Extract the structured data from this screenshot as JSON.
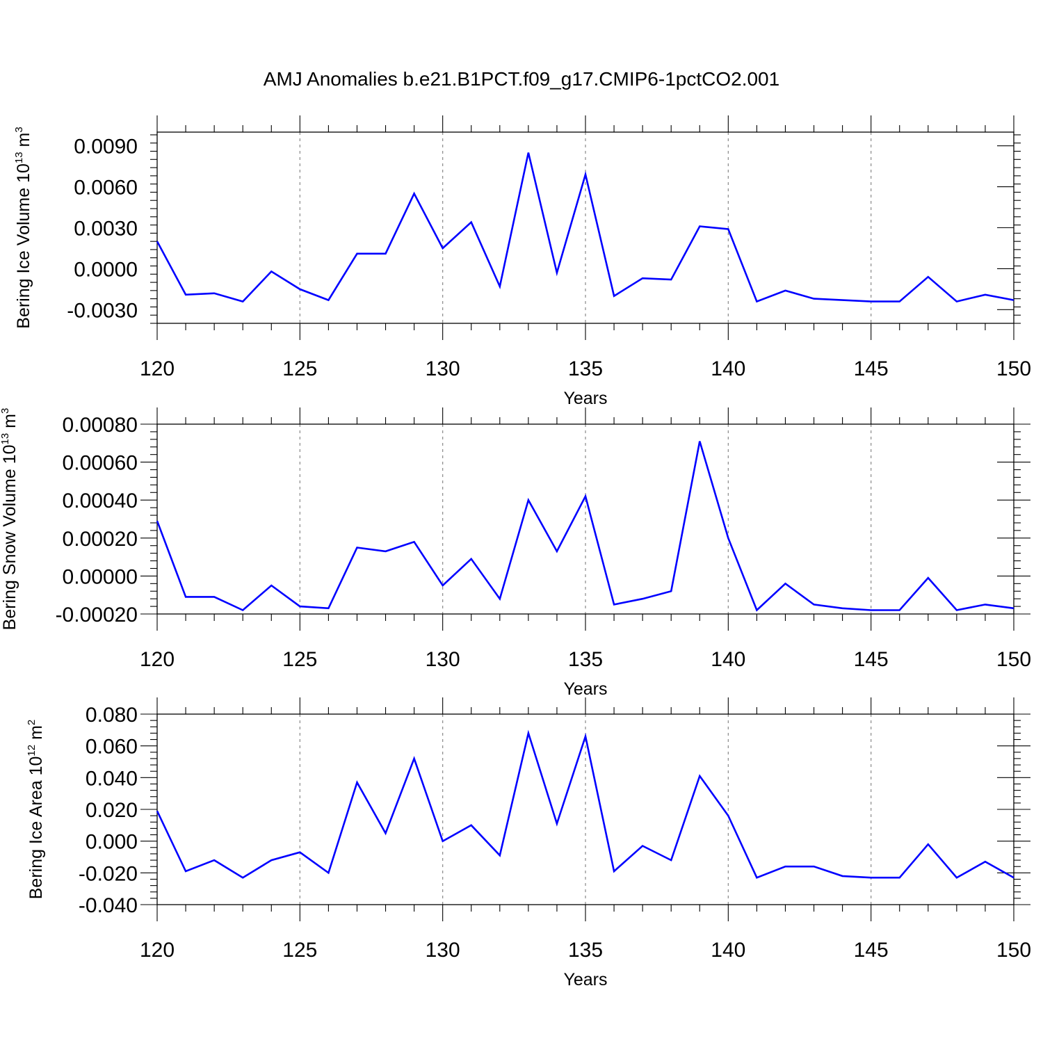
{
  "title": "AMJ Anomalies b.e21.B1PCT.f09_g17.CMIP6-1pctCO2.001",
  "colors": {
    "line": "#0000ff",
    "axis": "#000000",
    "grid": "#888888"
  },
  "chart_data": [
    {
      "type": "line",
      "ylabel": {
        "main": "Bering Ice Volume 10",
        "exp": "13",
        "unit": " m",
        "unit_exp": "3"
      },
      "xlabel": "Years",
      "xlim": [
        120,
        150
      ],
      "ylim": [
        -0.004,
        0.01
      ],
      "yticks": [
        -0.003,
        0.0,
        0.003,
        0.006,
        0.009
      ],
      "ytick_labels": [
        "-0.0030",
        "0.0000",
        "0.0030",
        "0.0060",
        "0.0090"
      ],
      "xticks": [
        120,
        125,
        130,
        135,
        140,
        145,
        150
      ],
      "xtick_labels": [
        "120",
        "125",
        "130",
        "135",
        "140",
        "145",
        "150"
      ],
      "grid": "vertical dashed at major x ticks",
      "series": [
        {
          "x": [
            120,
            121,
            122,
            123,
            124,
            125,
            126,
            127,
            128,
            129,
            130,
            131,
            132,
            133,
            134,
            135,
            136,
            137,
            138,
            139,
            140,
            141,
            142,
            143,
            144,
            145,
            146,
            147,
            148,
            149,
            150
          ],
          "values": [
            0.002,
            -0.0019,
            -0.0018,
            -0.0024,
            -0.0002,
            -0.0015,
            -0.0023,
            0.0011,
            0.0011,
            0.0055,
            0.0015,
            0.0034,
            -0.0013,
            0.0085,
            -0.0003,
            0.0069,
            -0.002,
            -0.0007,
            -0.0008,
            0.0031,
            0.0029,
            -0.0024,
            -0.0016,
            -0.0022,
            -0.0023,
            -0.0024,
            -0.0024,
            -0.0006,
            -0.0024,
            -0.0019,
            -0.0023
          ]
        }
      ]
    },
    {
      "type": "line",
      "ylabel": {
        "main": "Bering Snow Volume 10",
        "exp": "13",
        "unit": " m",
        "unit_exp": "3"
      },
      "xlabel": "Years",
      "xlim": [
        120,
        150
      ],
      "ylim": [
        -0.0002,
        0.0008
      ],
      "yticks": [
        -0.0002,
        0.0,
        0.0002,
        0.0004,
        0.0006,
        0.0008
      ],
      "ytick_labels": [
        "-0.00020",
        "0.00000",
        "0.00020",
        "0.00040",
        "0.00060",
        "0.00080"
      ],
      "xticks": [
        120,
        125,
        130,
        135,
        140,
        145,
        150
      ],
      "xtick_labels": [
        "120",
        "125",
        "130",
        "135",
        "140",
        "145",
        "150"
      ],
      "grid": "vertical dashed at major x ticks",
      "series": [
        {
          "x": [
            120,
            121,
            122,
            123,
            124,
            125,
            126,
            127,
            128,
            129,
            130,
            131,
            132,
            133,
            134,
            135,
            136,
            137,
            138,
            139,
            140,
            141,
            142,
            143,
            144,
            145,
            146,
            147,
            148,
            149,
            150
          ],
          "values": [
            0.00029,
            -0.00011,
            -0.00011,
            -0.00018,
            -5e-05,
            -0.00016,
            -0.00017,
            0.00015,
            0.00013,
            0.00018,
            -5e-05,
            9e-05,
            -0.00012,
            0.0004,
            0.00013,
            0.00042,
            -0.00015,
            -0.00012,
            -8e-05,
            0.00071,
            0.0002,
            -0.00018,
            -4e-05,
            -0.00015,
            -0.00017,
            -0.00018,
            -0.00018,
            -1e-05,
            -0.00018,
            -0.00015,
            -0.00017
          ]
        }
      ]
    },
    {
      "type": "line",
      "ylabel": {
        "main": "Bering Ice Area 10",
        "exp": "12",
        "unit": " m",
        "unit_exp": "2"
      },
      "xlabel": "Years",
      "xlim": [
        120,
        150
      ],
      "ylim": [
        -0.04,
        0.08
      ],
      "yticks": [
        -0.04,
        -0.02,
        0.0,
        0.02,
        0.04,
        0.06,
        0.08
      ],
      "ytick_labels": [
        "-0.040",
        "-0.020",
        "0.000",
        "0.020",
        "0.040",
        "0.060",
        "0.080"
      ],
      "xticks": [
        120,
        125,
        130,
        135,
        140,
        145,
        150
      ],
      "xtick_labels": [
        "120",
        "125",
        "130",
        "135",
        "140",
        "145",
        "150"
      ],
      "grid": "vertical dashed at major x ticks",
      "series": [
        {
          "x": [
            120,
            121,
            122,
            123,
            124,
            125,
            126,
            127,
            128,
            129,
            130,
            131,
            132,
            133,
            134,
            135,
            136,
            137,
            138,
            139,
            140,
            141,
            142,
            143,
            144,
            145,
            146,
            147,
            148,
            149,
            150
          ],
          "values": [
            0.019,
            -0.019,
            -0.012,
            -0.023,
            -0.012,
            -0.007,
            -0.02,
            0.037,
            0.005,
            0.052,
            0.0,
            0.01,
            -0.009,
            0.068,
            0.011,
            0.066,
            -0.019,
            -0.003,
            -0.012,
            0.041,
            0.016,
            -0.023,
            -0.016,
            -0.016,
            -0.022,
            -0.023,
            -0.023,
            -0.002,
            -0.023,
            -0.013,
            -0.023
          ]
        }
      ]
    }
  ]
}
